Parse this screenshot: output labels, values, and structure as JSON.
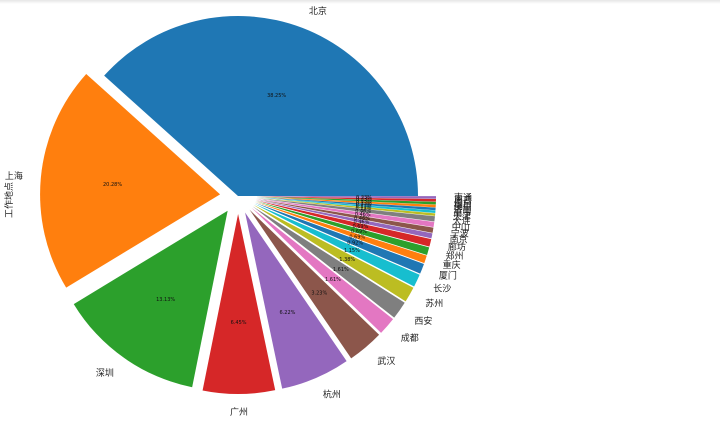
{
  "chart_data": {
    "type": "pie",
    "ylabel": "工作地点",
    "categories": [
      "北京",
      "上海",
      "深圳",
      "广州",
      "杭州",
      "武汉",
      "成都",
      "西安",
      "苏州",
      "长沙",
      "厦门",
      "重庆",
      "郑州",
      "廊坊",
      "南京",
      "宁波",
      "中山",
      "大连",
      "天津",
      "南宁",
      "济南",
      "佛山",
      "烟台",
      "南昌",
      "南通"
    ],
    "values": [
      38.25,
      20.28,
      13.13,
      6.45,
      6.22,
      3.23,
      1.61,
      1.61,
      1.38,
      1.15,
      0.92,
      0.69,
      0.69,
      0.69,
      0.46,
      0.46,
      0.46,
      0.46,
      0.23,
      0.23,
      0.23,
      0.23,
      0.23,
      0.23,
      0.23
    ],
    "pct_labels": [
      "38.25%",
      "20.28%",
      "13.13%",
      "6.45%",
      "6.22%",
      "3.23%",
      "1.61%",
      "1.61%",
      "1.38%",
      "1.15%",
      "0.92%",
      "0.69%",
      "0.69%",
      "0.69%",
      "0.46%",
      "0.46%",
      "0.46%",
      "0.46%",
      "0.23%",
      "0.23%",
      "0.23%",
      "0.23%",
      "0.23%",
      "0.23%",
      "0.23%"
    ],
    "explode": true,
    "start_angle_deg": 0,
    "direction": "counterclockwise",
    "colors": [
      "#1f77b4",
      "#ff7f0e",
      "#2ca02c",
      "#d62728",
      "#9467bd",
      "#8c564b",
      "#e377c2",
      "#7f7f7f",
      "#bcbd22",
      "#17becf",
      "#1f77b4",
      "#ff7f0e",
      "#2ca02c",
      "#d62728",
      "#9467bd",
      "#8c564b",
      "#e377c2",
      "#7f7f7f",
      "#bcbd22",
      "#17becf",
      "#1f77b4",
      "#ff7f0e",
      "#2ca02c",
      "#d62728",
      "#9467bd"
    ]
  }
}
